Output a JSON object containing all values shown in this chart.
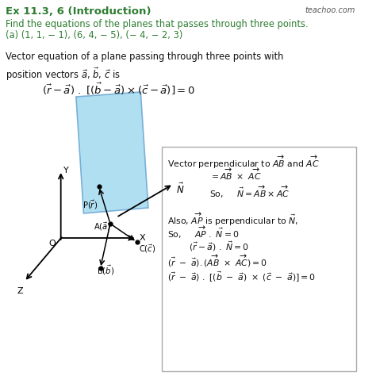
{
  "title": "Ex 11.3, 6 (Introduction)",
  "subtitle": "Find the equations of the planes that passes through three points.",
  "subtitle2": "(a) (1, 1, − 1), (6, 4, − 5), (− 4, − 2, 3)",
  "watermark": "teachoo.com",
  "bg_color": "#ffffff",
  "title_color": "#2e7d32",
  "subtitle_color": "#2e7d32",
  "body_color": "#111111",
  "plane_color": "#87CEEB",
  "plane_alpha": 0.65,
  "box_edge_color": "#aaaaaa",
  "box_face_color": "#ffffff"
}
